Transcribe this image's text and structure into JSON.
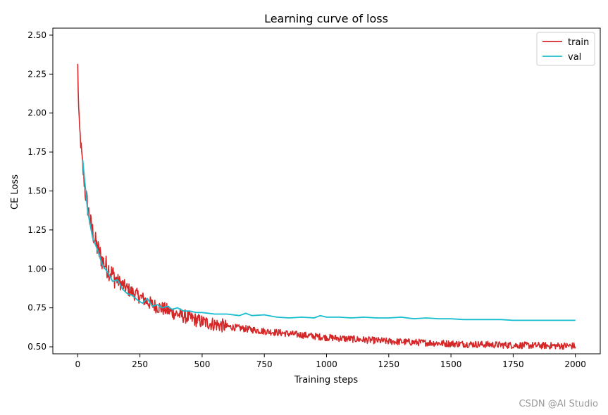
{
  "chart_data": {
    "type": "line",
    "title": "Learning curve of loss",
    "xlabel": "Training steps",
    "ylabel": "CE Loss",
    "xlim": [
      -100,
      2100
    ],
    "ylim": [
      0.455,
      2.545
    ],
    "xticks": [
      0,
      250,
      500,
      750,
      1000,
      1250,
      1500,
      1750,
      2000
    ],
    "yticks": [
      0.5,
      0.75,
      1.0,
      1.25,
      1.5,
      1.75,
      2.0,
      2.25,
      2.5
    ],
    "legend_position": "top-right",
    "grid": false,
    "series": [
      {
        "name": "train",
        "color": "#d62728",
        "noisy": true,
        "x": [
          0,
          5,
          10,
          20,
          30,
          50,
          75,
          100,
          150,
          200,
          250,
          300,
          400,
          500,
          600,
          750,
          1000,
          1250,
          1500,
          1750,
          2000
        ],
        "values": [
          2.3,
          1.95,
          1.85,
          1.65,
          1.5,
          1.3,
          1.15,
          1.05,
          0.94,
          0.87,
          0.82,
          0.77,
          0.71,
          0.66,
          0.63,
          0.6,
          0.56,
          0.535,
          0.52,
          0.51,
          0.505
        ]
      },
      {
        "name": "val",
        "color": "#17becf",
        "noisy": false,
        "x": [
          20,
          40,
          60,
          80,
          100,
          120,
          140,
          160,
          180,
          200,
          220,
          240,
          260,
          280,
          300,
          320,
          340,
          360,
          380,
          400,
          425,
          450,
          475,
          500,
          550,
          600,
          650,
          675,
          700,
          750,
          800,
          850,
          900,
          950,
          975,
          1000,
          1050,
          1100,
          1150,
          1200,
          1250,
          1300,
          1350,
          1400,
          1450,
          1500,
          1550,
          1600,
          1650,
          1700,
          1750,
          1800,
          1850,
          1900,
          1950,
          2000
        ],
        "values": [
          1.7,
          1.37,
          1.2,
          1.12,
          1.02,
          0.98,
          0.92,
          0.93,
          0.87,
          0.84,
          0.83,
          0.8,
          0.78,
          0.81,
          0.76,
          0.77,
          0.75,
          0.76,
          0.74,
          0.75,
          0.73,
          0.73,
          0.72,
          0.72,
          0.71,
          0.71,
          0.7,
          0.715,
          0.7,
          0.705,
          0.69,
          0.685,
          0.69,
          0.685,
          0.7,
          0.69,
          0.69,
          0.685,
          0.69,
          0.685,
          0.685,
          0.69,
          0.68,
          0.685,
          0.68,
          0.68,
          0.675,
          0.675,
          0.675,
          0.675,
          0.67,
          0.67,
          0.67,
          0.67,
          0.67,
          0.67
        ]
      }
    ]
  },
  "watermark": "CSDN @AI Studio"
}
